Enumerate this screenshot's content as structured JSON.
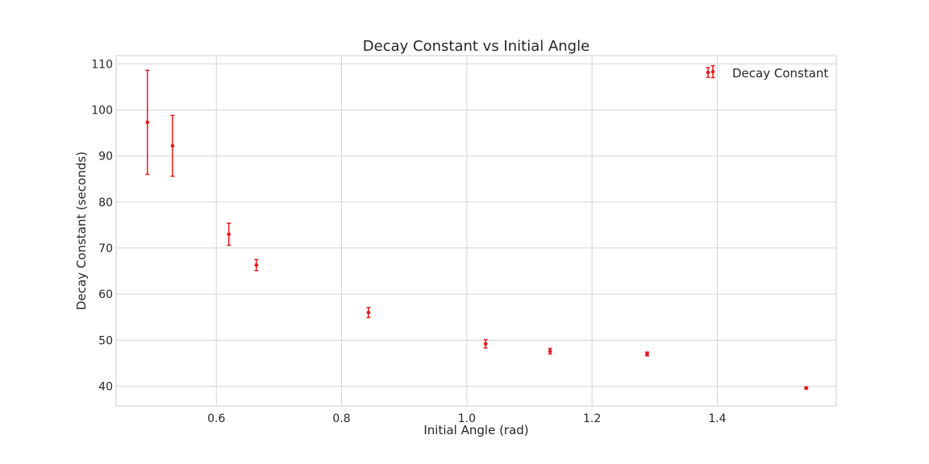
{
  "chart_data": {
    "type": "scatter",
    "title": "Decay Constant vs Initial Angle",
    "xlabel": "Initial Angle (rad)",
    "ylabel": "Decay Constant (seconds)",
    "xlim": [
      0.44,
      1.59
    ],
    "ylim": [
      35.7,
      111.8
    ],
    "x_ticks": [
      0.6,
      0.8,
      1.0,
      1.2,
      1.4
    ],
    "x_tick_labels": [
      "0.6",
      "0.8",
      "1.0",
      "1.2",
      "1.4"
    ],
    "y_ticks": [
      40,
      50,
      60,
      70,
      80,
      90,
      100,
      110
    ],
    "y_tick_labels": [
      "40",
      "50",
      "60",
      "70",
      "80",
      "90",
      "100",
      "110"
    ],
    "grid": true,
    "legend_position": "top-right",
    "series": [
      {
        "name": "Decay Constant",
        "color": "#e41a1c",
        "points": [
          {
            "x": 0.49,
            "y": 97.3,
            "err": 11.3
          },
          {
            "x": 0.53,
            "y": 92.2,
            "err": 6.6
          },
          {
            "x": 0.62,
            "y": 73.0,
            "err": 2.4
          },
          {
            "x": 0.664,
            "y": 66.3,
            "err": 1.2
          },
          {
            "x": 0.843,
            "y": 56.0,
            "err": 1.1
          },
          {
            "x": 1.03,
            "y": 49.2,
            "err": 0.9
          },
          {
            "x": 1.133,
            "y": 47.6,
            "err": 0.6
          },
          {
            "x": 1.288,
            "y": 47.0,
            "err": 0.4
          },
          {
            "x": 1.393,
            "y": 108.3,
            "err": 1.3
          },
          {
            "x": 1.542,
            "y": 39.6,
            "err": 0.2
          }
        ]
      }
    ]
  }
}
